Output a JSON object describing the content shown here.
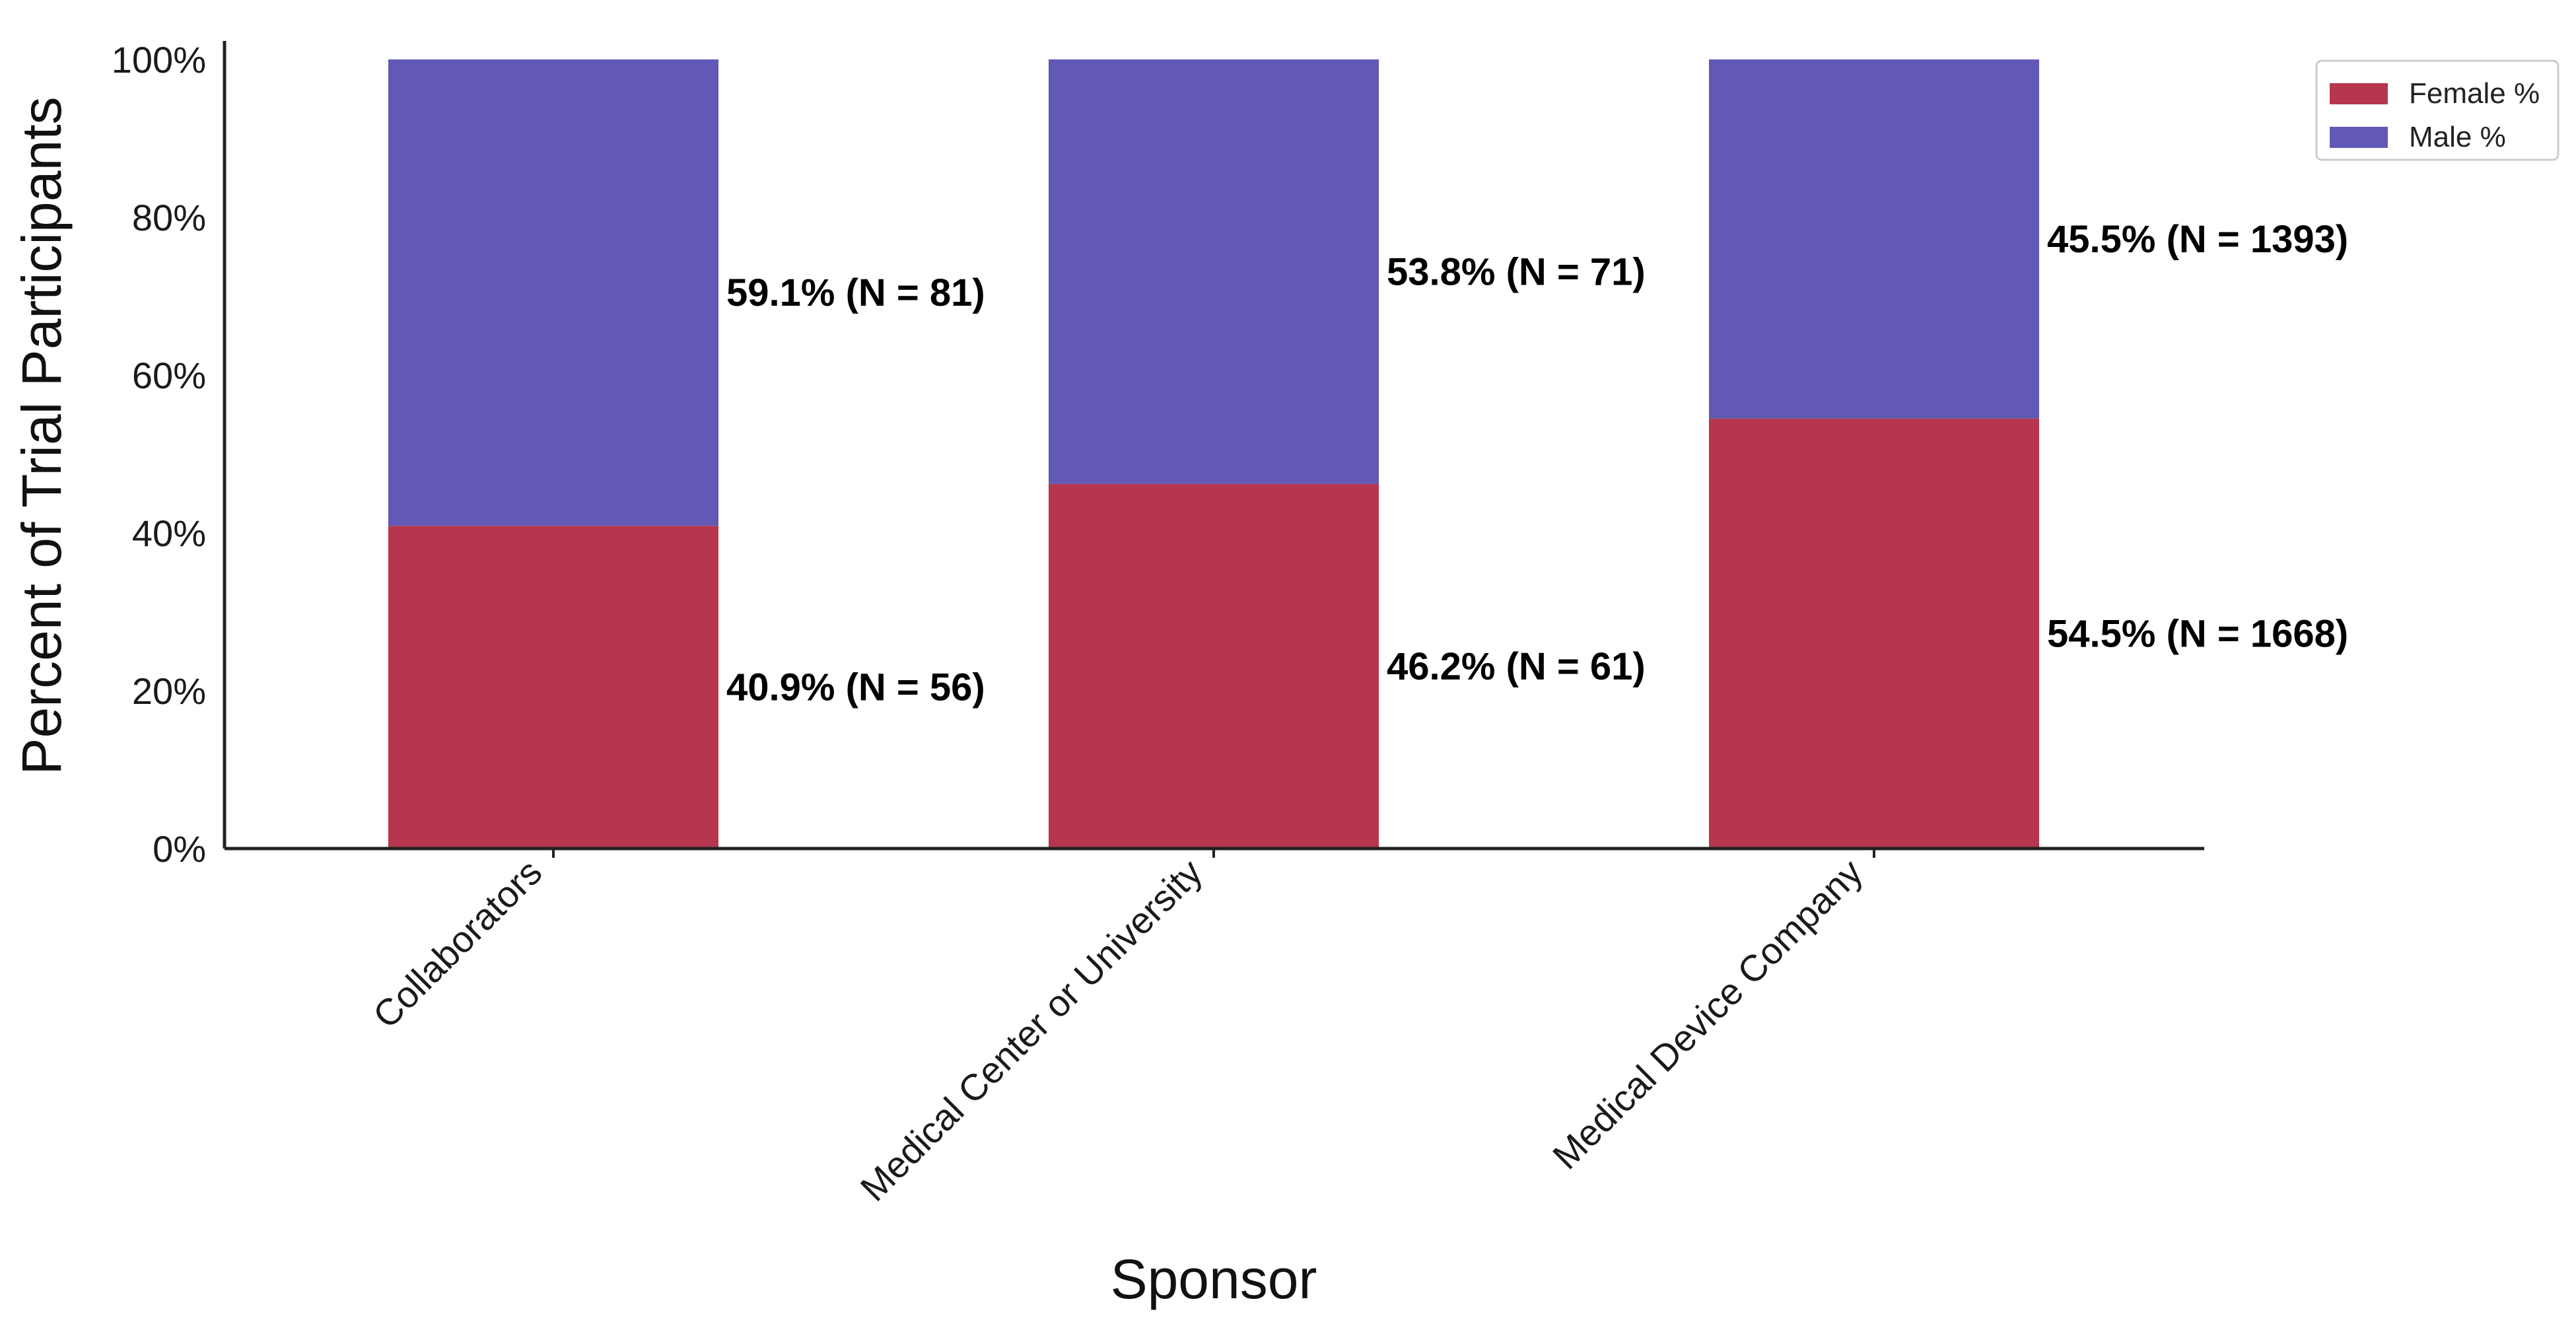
{
  "chart_data": {
    "type": "bar",
    "stacked": true,
    "categories": [
      "Collaborators",
      "Medical Center or University",
      "Medical Device Company"
    ],
    "series": [
      {
        "name": "Female %",
        "color": "#b5364e",
        "values": [
          40.9,
          46.2,
          54.5
        ],
        "labels": [
          "40.9% (N = 56)",
          "46.2% (N = 61)",
          "54.5% (N = 1668)"
        ]
      },
      {
        "name": "Male %",
        "color": "#6159b5",
        "values": [
          59.1,
          53.8,
          45.5
        ],
        "labels": [
          "59.1% (N = 81)",
          "53.8% (N = 71)",
          "45.5% (N = 1393)"
        ]
      }
    ],
    "xlabel": "Sponsor",
    "ylabel": "Percent of Trial Participants",
    "ylim": [
      0,
      100
    ],
    "yticks": [
      0,
      20,
      40,
      60,
      80,
      100
    ],
    "ytick_labels": [
      "0%",
      "20%",
      "40%",
      "60%",
      "80%",
      "100%"
    ],
    "grid": false,
    "legend_position": "top-right"
  }
}
